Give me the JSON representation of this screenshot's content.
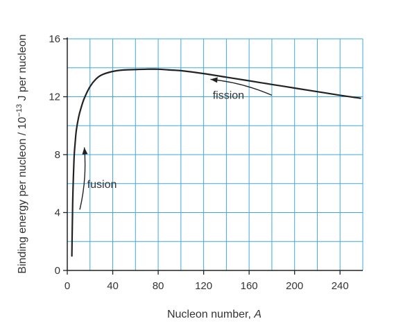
{
  "chart_data": {
    "type": "line",
    "title": "",
    "xlabel": "Nucleon number, ",
    "xlabel_var": "A",
    "ylabel": "Binding energy per nucleon / 10",
    "ylabel_exp": "−13",
    "ylabel_unit": " J per nucleon",
    "xlim": [
      0,
      260
    ],
    "ylim": [
      0,
      16
    ],
    "x_ticks": [
      0,
      40,
      80,
      120,
      160,
      200,
      240
    ],
    "y_ticks": [
      0,
      4,
      8,
      12,
      16
    ],
    "x_grid_step": 20,
    "y_grid_step": 2,
    "grid": true,
    "grid_color": "#3fa9dc",
    "line_color": "#222222",
    "series": [
      {
        "x": [
          4,
          4.5,
          5,
          6,
          7,
          8,
          10,
          12,
          15,
          20,
          25,
          30,
          40,
          50,
          60,
          70,
          80,
          90,
          100,
          120,
          140,
          160,
          180,
          200,
          220,
          240,
          258
        ],
        "values": [
          1.0,
          3.5,
          5.5,
          7.8,
          8.9,
          9.7,
          10.6,
          11.2,
          11.9,
          12.7,
          13.2,
          13.5,
          13.75,
          13.85,
          13.88,
          13.9,
          13.9,
          13.85,
          13.8,
          13.6,
          13.35,
          13.1,
          12.85,
          12.6,
          12.35,
          12.1,
          11.9
        ]
      }
    ],
    "annotations": [
      {
        "text": "fusion",
        "x": 17.5,
        "y": 5.7,
        "arrow_from": [
          11,
          4.2
        ],
        "arrow_to": [
          15,
          8.5
        ]
      },
      {
        "text": "fission",
        "x": 128,
        "y": 11.85,
        "arrow_from": [
          180,
          12.1
        ],
        "arrow_to": [
          126,
          13.2
        ]
      }
    ]
  }
}
